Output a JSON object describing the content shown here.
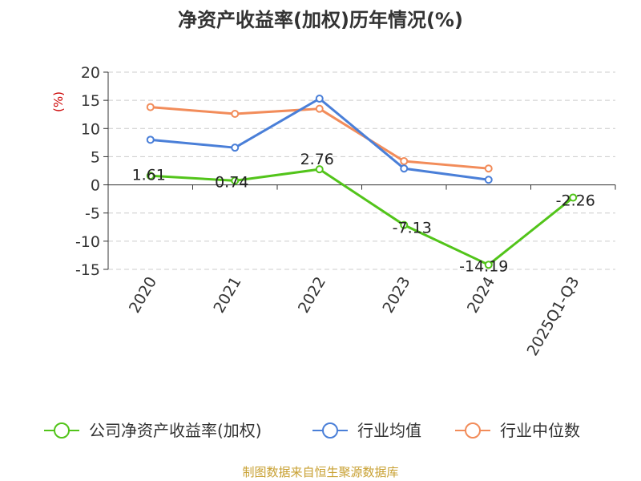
{
  "chart_data": {
    "type": "line",
    "title": "净资产收益率(加权)历年情况(%)",
    "ylabel": "(%)",
    "xlabel": "",
    "categories": [
      "2020",
      "2021",
      "2022",
      "2023",
      "2024",
      "2025Q1-Q3"
    ],
    "ylim": [
      -15,
      20
    ],
    "yticks": [
      20,
      15,
      10,
      5,
      0,
      -5,
      -10,
      -15
    ],
    "grid": true,
    "legend_position": "bottom",
    "series": [
      {
        "name": "公司净资产收益率(加权)",
        "color": "#52c41a",
        "values": [
          1.61,
          0.74,
          2.76,
          -7.13,
          -14.19,
          -2.26
        ],
        "labels": [
          "1.61",
          "0.74",
          "2.76",
          "-7.13",
          "-14.19",
          "-2.26"
        ]
      },
      {
        "name": "行业均值",
        "color": "#4a7fd8",
        "values": [
          8.0,
          6.6,
          15.3,
          2.9,
          0.9,
          null
        ]
      },
      {
        "name": "行业中位数",
        "color": "#f28c5a",
        "values": [
          13.8,
          12.6,
          13.5,
          4.2,
          2.9,
          null
        ]
      }
    ]
  },
  "source": "制图数据来自恒生聚源数据库"
}
